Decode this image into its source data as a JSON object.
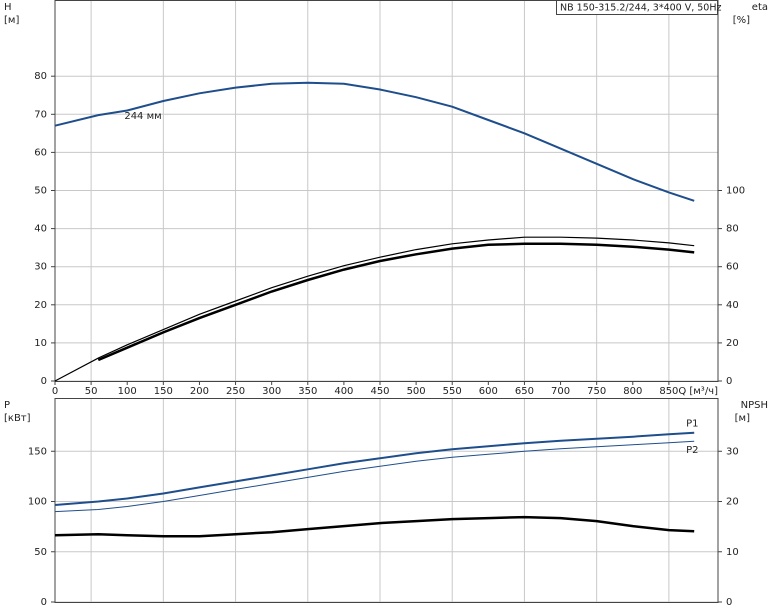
{
  "chart_data": [
    {
      "type": "line",
      "title": "NB 150-315.2/244, 3*400 V, 50Hz",
      "y_label": "H",
      "y_unit": "[м]",
      "y2_label": "eta",
      "y2_unit": "[%]",
      "x_label": "Q [м³/ч]",
      "annotation": "244 мм",
      "x": [
        0,
        60,
        100,
        150,
        200,
        250,
        300,
        350,
        400,
        450,
        500,
        550,
        600,
        650,
        700,
        750,
        800,
        850,
        885
      ],
      "xlim": [
        0,
        918
      ],
      "xticks": [
        0,
        50,
        100,
        150,
        200,
        250,
        300,
        350,
        400,
        450,
        500,
        550,
        600,
        650,
        700,
        750,
        800,
        850
      ],
      "ylim": [
        0,
        100
      ],
      "yticks": [
        0,
        10,
        20,
        30,
        40,
        50,
        60,
        70,
        80
      ],
      "y2lim": [
        0,
        200
      ],
      "y2ticks": [
        0,
        20,
        40,
        60,
        80,
        100
      ],
      "grid": true,
      "series": [
        {
          "color": "#1f4e8c",
          "width": 2,
          "values": [
            67,
            69.8,
            71,
            73.5,
            75.5,
            77,
            78,
            78.3,
            78,
            76.5,
            74.5,
            72,
            68.5,
            65,
            61,
            57,
            53,
            49.5,
            47.3
          ]
        },
        {
          "color": "#000000",
          "width": 1.2,
          "axis": "y2",
          "values": [
            0,
            12,
            19,
            27,
            35,
            42,
            49,
            55,
            60.5,
            65,
            69,
            72,
            74,
            75.5,
            75.5,
            75,
            74,
            72.5,
            71
          ]
        },
        {
          "color": "#000000",
          "width": 2.5,
          "axis": "y2",
          "values": [
            null,
            11,
            17.5,
            25.5,
            33,
            40,
            47,
            53,
            58.5,
            63,
            66.5,
            69.5,
            71.5,
            72,
            72,
            71.5,
            70.5,
            69,
            67.5
          ]
        }
      ]
    },
    {
      "type": "line",
      "y_label": "P",
      "y_unit": "[кВт]",
      "y2_label": "NPSH",
      "y2_unit": "[м]",
      "x": [
        0,
        60,
        100,
        150,
        200,
        250,
        300,
        350,
        400,
        450,
        500,
        550,
        600,
        650,
        700,
        750,
        800,
        850,
        885
      ],
      "xlim": [
        0,
        918
      ],
      "ylim": [
        0,
        203
      ],
      "yticks": [
        0,
        50,
        100,
        150
      ],
      "y2lim": [
        0,
        40.6
      ],
      "y2ticks": [
        0,
        10,
        20,
        30
      ],
      "grid": true,
      "series": [
        {
          "name": "P1",
          "color": "#1f4e8c",
          "width": 2,
          "values": [
            96.5,
            100,
            103,
            108,
            114,
            120,
            126,
            132,
            138,
            143,
            148,
            152,
            155,
            158,
            160.5,
            162.5,
            164.5,
            167,
            168.5
          ]
        },
        {
          "name": "P2",
          "color": "#1f4e8c",
          "width": 1,
          "values": [
            90,
            92,
            95,
            100,
            106,
            112,
            118,
            124,
            130,
            135,
            140,
            144,
            147,
            150,
            152.5,
            154.5,
            156.5,
            158.5,
            160
          ]
        },
        {
          "color": "#000000",
          "width": 2.5,
          "axis": "y2",
          "values": [
            13.3,
            13.5,
            13.3,
            13.1,
            13.1,
            13.5,
            13.9,
            14.5,
            15.1,
            15.7,
            16.1,
            16.5,
            16.7,
            16.9,
            16.7,
            16.1,
            15.1,
            14.3,
            14.1
          ]
        }
      ]
    }
  ]
}
